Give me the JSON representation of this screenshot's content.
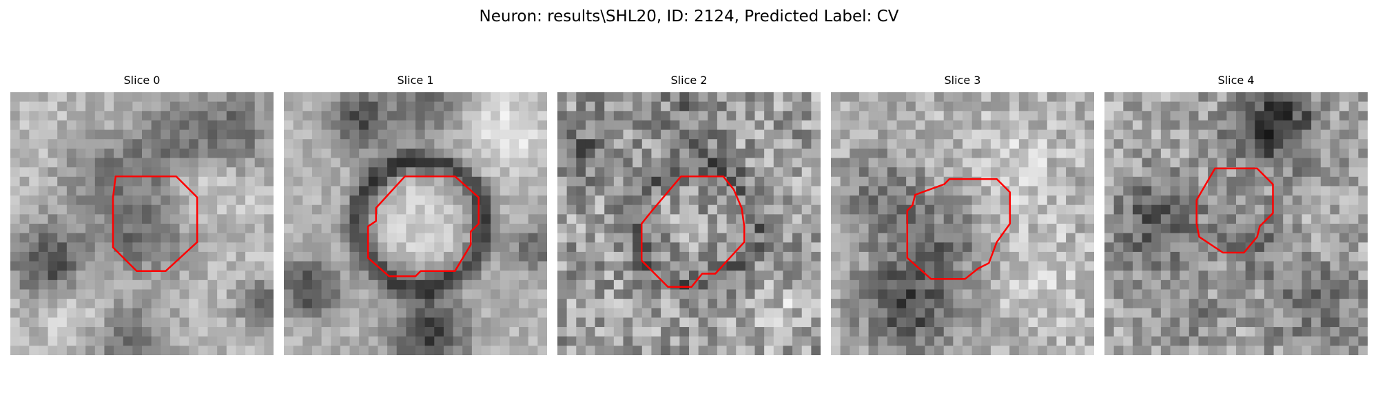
{
  "figure": {
    "title": "Neuron: results\\SHL20, ID: 2124, Predicted Label: CV"
  },
  "panels": [
    {
      "title": "Slice 0"
    },
    {
      "title": "Slice 1"
    },
    {
      "title": "Slice 2"
    },
    {
      "title": "Slice 3"
    },
    {
      "title": "Slice 4"
    }
  ],
  "colors": {
    "contour": "#ff0000",
    "background": "#ffffff"
  }
}
